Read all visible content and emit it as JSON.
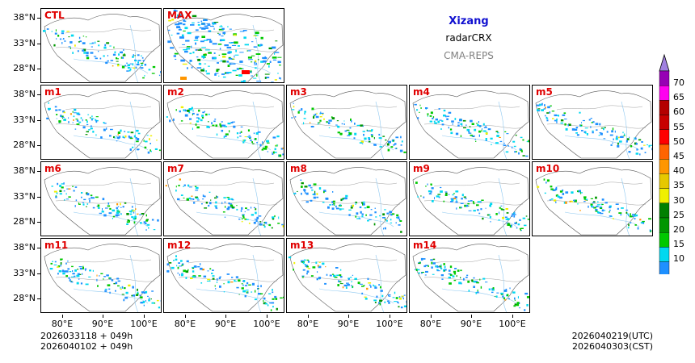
{
  "header": {
    "region": "Xizang",
    "variable": "radarCRX",
    "model": "CMA-REPS"
  },
  "panels": [
    {
      "id": "CTL"
    },
    {
      "id": "MAX"
    },
    {
      "id": "m1"
    },
    {
      "id": "m2"
    },
    {
      "id": "m3"
    },
    {
      "id": "m4"
    },
    {
      "id": "m5"
    },
    {
      "id": "m6"
    },
    {
      "id": "m7"
    },
    {
      "id": "m8"
    },
    {
      "id": "m9"
    },
    {
      "id": "m10"
    },
    {
      "id": "m11"
    },
    {
      "id": "m12"
    },
    {
      "id": "m13"
    },
    {
      "id": "m14"
    }
  ],
  "axes": {
    "lat_ticks": [
      "38°N",
      "33°N",
      "28°N"
    ],
    "lon_ticks": [
      "80°E",
      "90°E",
      "100°E"
    ]
  },
  "colorbar": {
    "levels": [
      "10",
      "15",
      "20",
      "25",
      "30",
      "35",
      "40",
      "45",
      "50",
      "55",
      "60",
      "65",
      "70"
    ],
    "colors": [
      "#1e90ff",
      "#00d8f0",
      "#00c800",
      "#009600",
      "#008000",
      "#f0f000",
      "#e6c800",
      "#ff9600",
      "#ff6400",
      "#ff0000",
      "#c80000",
      "#b40000",
      "#ff00f0",
      "#9600b4",
      "#a080e0"
    ]
  },
  "footer": {
    "init_utc": "2026033118  +  049h",
    "init_cst": "2026040102  +  049h",
    "valid_utc": "2026040219(UTC)",
    "valid_cst": "2026040303(CST)"
  }
}
